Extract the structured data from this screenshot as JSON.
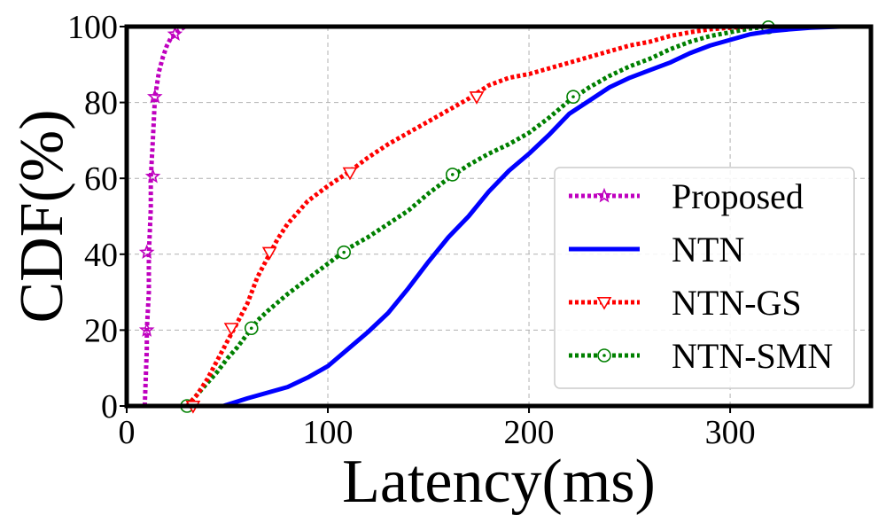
{
  "chart_data": {
    "type": "line",
    "title": "",
    "xlabel": "Latency(ms)",
    "ylabel": "CDF(%)",
    "xlim": [
      0,
      370
    ],
    "ylim": [
      0,
      100
    ],
    "xticks": [
      0,
      100,
      200,
      300
    ],
    "yticks": [
      0,
      20,
      40,
      60,
      80,
      100
    ],
    "grid": true,
    "legend_position": "center-right",
    "series": [
      {
        "name": "Proposed",
        "color": "#bf00bf",
        "linestyle": "dotted",
        "marker": "star",
        "x": [
          9,
          10,
          10,
          11,
          11,
          12,
          12,
          13,
          14,
          16,
          18,
          20,
          22,
          24,
          26,
          29
        ],
        "y": [
          0,
          15,
          20,
          30,
          40,
          52,
          60,
          70,
          81,
          88,
          92,
          95,
          97,
          98,
          99,
          100
        ],
        "marker_points": [
          [
            10,
            20
          ],
          [
            10,
            40.5
          ],
          [
            13,
            60.5
          ],
          [
            14,
            81.5
          ],
          [
            24,
            98
          ]
        ]
      },
      {
        "name": "NTN",
        "color": "#0000ff",
        "linestyle": "solid",
        "marker": "none",
        "x": [
          48,
          60,
          70,
          80,
          90,
          100,
          110,
          120,
          130,
          140,
          150,
          160,
          170,
          180,
          190,
          200,
          210,
          220,
          230,
          240,
          250,
          260,
          270,
          280,
          290,
          300,
          310,
          320,
          330,
          340,
          355
        ],
        "y": [
          0,
          2,
          3.5,
          5,
          7.5,
          10.5,
          15,
          19.5,
          24.5,
          31,
          38,
          44.5,
          50,
          56.5,
          62,
          66.5,
          71.5,
          77,
          80.5,
          84,
          86.5,
          88.5,
          90.5,
          93,
          95,
          96.5,
          98,
          98.8,
          99.3,
          99.7,
          100
        ]
      },
      {
        "name": "NTN-GS",
        "color": "#ff0000",
        "linestyle": "dotted",
        "marker": "triangle-down",
        "x": [
          30,
          35,
          40,
          45,
          50,
          55,
          60,
          65,
          70,
          75,
          80,
          90,
          100,
          110,
          120,
          130,
          140,
          150,
          160,
          170,
          180,
          190,
          200,
          210,
          220,
          230,
          240,
          250,
          260,
          270,
          280,
          290,
          300,
          310
        ],
        "y": [
          0,
          3,
          7,
          12,
          17,
          22,
          27,
          34,
          39,
          44,
          48,
          54,
          58,
          61.5,
          65.5,
          69,
          72,
          75,
          78,
          81,
          84.5,
          86.5,
          87.5,
          89,
          90.5,
          92,
          93.5,
          95,
          96,
          97.5,
          98.5,
          99.3,
          99.7,
          100
        ],
        "marker_points": [
          [
            33,
            0
          ],
          [
            52,
            20.5
          ],
          [
            71,
            40.5
          ],
          [
            111,
            61.5
          ],
          [
            174,
            81.5
          ]
        ]
      },
      {
        "name": "NTN-SMN",
        "color": "#008000",
        "linestyle": "dotted",
        "marker": "circle-dot",
        "x": [
          30,
          35,
          40,
          45,
          50,
          55,
          60,
          65,
          70,
          80,
          90,
          100,
          110,
          120,
          130,
          140,
          150,
          160,
          170,
          180,
          190,
          200,
          210,
          220,
          230,
          240,
          250,
          260,
          270,
          280,
          290,
          300,
          310,
          320
        ],
        "y": [
          0,
          3,
          6,
          9,
          12.5,
          15.5,
          19,
          22.5,
          25,
          29.5,
          33.5,
          37.5,
          41.5,
          44.5,
          48,
          51.5,
          56,
          60,
          63.5,
          66.5,
          69,
          72,
          76,
          80.5,
          84,
          87,
          89.5,
          91.5,
          94,
          96,
          97.5,
          98.5,
          99.5,
          100
        ],
        "marker_points": [
          [
            30,
            0
          ],
          [
            62,
            20.5
          ],
          [
            108,
            40.5
          ],
          [
            162,
            61
          ],
          [
            222,
            81.5
          ],
          [
            319,
            99.8
          ]
        ]
      }
    ]
  }
}
